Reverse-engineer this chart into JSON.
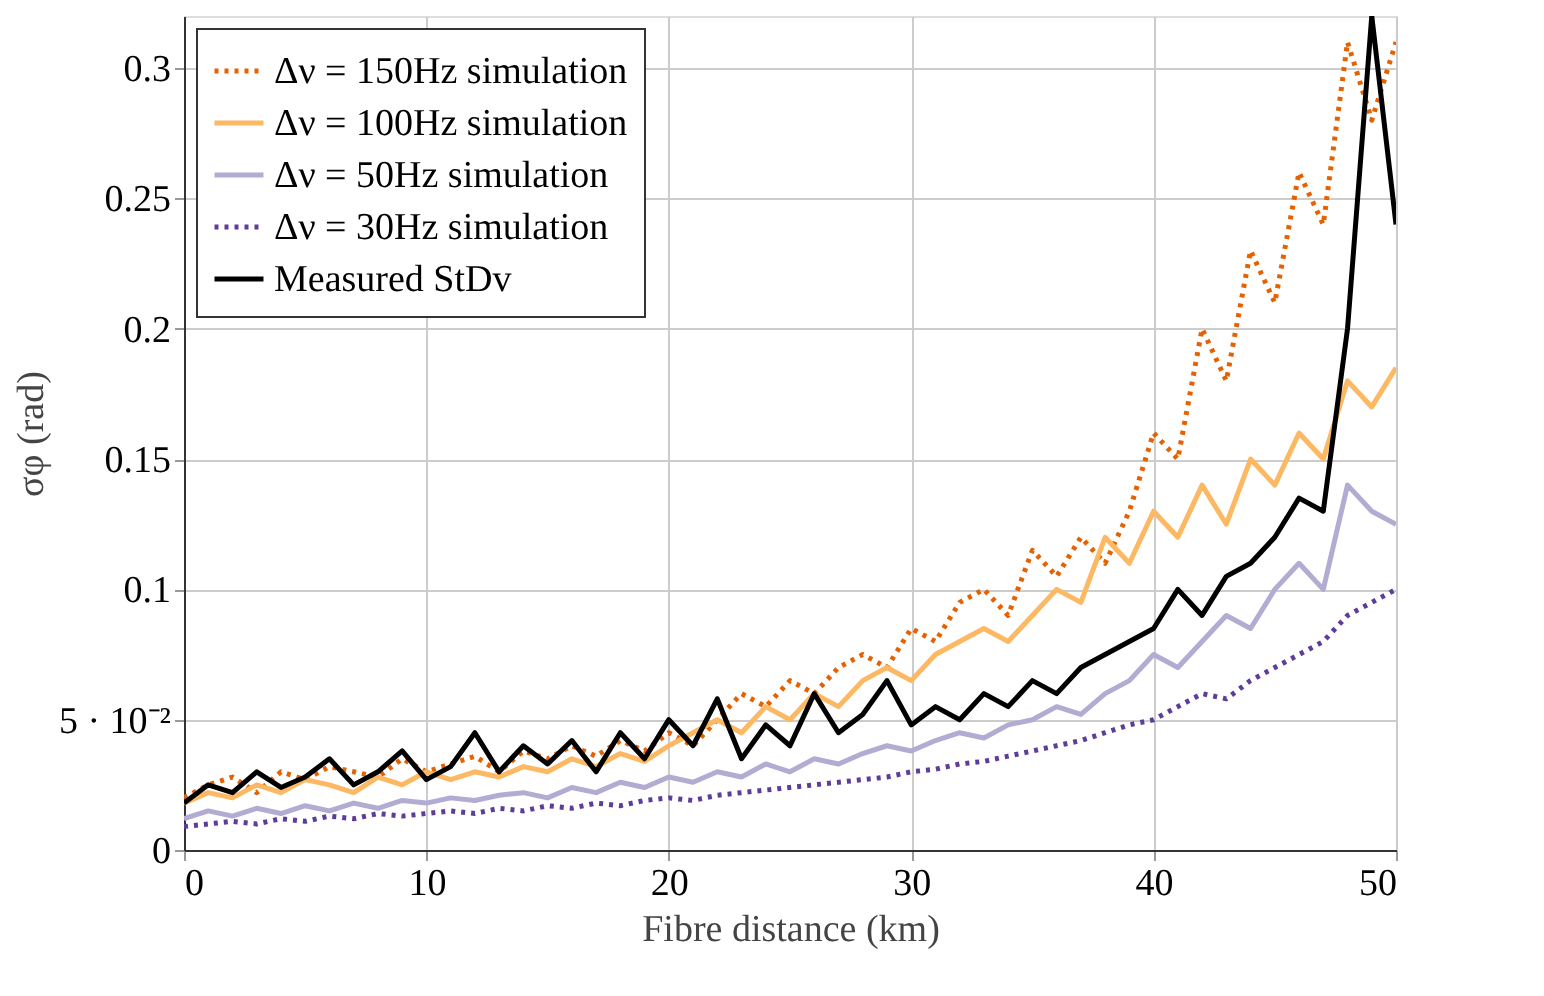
{
  "chart_data": {
    "type": "line",
    "xlabel": "Fibre distance (km)",
    "ylabel": "σφ (rad)",
    "x": [
      0,
      1,
      2,
      3,
      4,
      5,
      6,
      7,
      8,
      9,
      10,
      11,
      12,
      13,
      14,
      15,
      16,
      17,
      18,
      19,
      20,
      21,
      22,
      23,
      24,
      25,
      26,
      27,
      28,
      29,
      30,
      31,
      32,
      33,
      34,
      35,
      36,
      37,
      38,
      39,
      40,
      41,
      42,
      43,
      44,
      45,
      46,
      47,
      48,
      49,
      50
    ],
    "series": [
      {
        "name": "Δν = 150Hz simulation",
        "color": "#e66101",
        "line_style": "dotted",
        "values": [
          0.02,
          0.025,
          0.028,
          0.022,
          0.03,
          0.027,
          0.032,
          0.03,
          0.028,
          0.035,
          0.03,
          0.033,
          0.036,
          0.03,
          0.038,
          0.035,
          0.04,
          0.036,
          0.042,
          0.038,
          0.045,
          0.04,
          0.05,
          0.06,
          0.055,
          0.065,
          0.06,
          0.07,
          0.075,
          0.07,
          0.085,
          0.08,
          0.095,
          0.1,
          0.09,
          0.115,
          0.105,
          0.12,
          0.11,
          0.13,
          0.16,
          0.15,
          0.2,
          0.18,
          0.23,
          0.21,
          0.26,
          0.24,
          0.31,
          0.28,
          0.31
        ]
      },
      {
        "name": "Δν = 100Hz simulation",
        "color": "#fdb863",
        "line_style": "solid",
        "values": [
          0.018,
          0.022,
          0.02,
          0.025,
          0.022,
          0.027,
          0.025,
          0.022,
          0.028,
          0.025,
          0.03,
          0.027,
          0.03,
          0.028,
          0.032,
          0.03,
          0.035,
          0.032,
          0.037,
          0.034,
          0.04,
          0.045,
          0.05,
          0.045,
          0.055,
          0.05,
          0.06,
          0.055,
          0.065,
          0.07,
          0.065,
          0.075,
          0.08,
          0.085,
          0.08,
          0.09,
          0.1,
          0.095,
          0.12,
          0.11,
          0.13,
          0.12,
          0.14,
          0.125,
          0.15,
          0.14,
          0.16,
          0.15,
          0.18,
          0.17,
          0.185
        ]
      },
      {
        "name": "Δν = 50Hz simulation",
        "color": "#b2abd2",
        "line_style": "solid",
        "values": [
          0.012,
          0.015,
          0.013,
          0.016,
          0.014,
          0.017,
          0.015,
          0.018,
          0.016,
          0.019,
          0.018,
          0.02,
          0.019,
          0.021,
          0.022,
          0.02,
          0.024,
          0.022,
          0.026,
          0.024,
          0.028,
          0.026,
          0.03,
          0.028,
          0.033,
          0.03,
          0.035,
          0.033,
          0.037,
          0.04,
          0.038,
          0.042,
          0.045,
          0.043,
          0.048,
          0.05,
          0.055,
          0.052,
          0.06,
          0.065,
          0.075,
          0.07,
          0.08,
          0.09,
          0.085,
          0.1,
          0.11,
          0.1,
          0.14,
          0.13,
          0.125
        ]
      },
      {
        "name": "Δν = 30Hz simulation",
        "color": "#5e3c99",
        "line_style": "dotted",
        "values": [
          0.009,
          0.01,
          0.011,
          0.01,
          0.012,
          0.011,
          0.013,
          0.012,
          0.014,
          0.013,
          0.014,
          0.015,
          0.014,
          0.016,
          0.015,
          0.017,
          0.016,
          0.018,
          0.017,
          0.019,
          0.02,
          0.019,
          0.021,
          0.022,
          0.023,
          0.024,
          0.025,
          0.026,
          0.027,
          0.028,
          0.03,
          0.031,
          0.033,
          0.034,
          0.036,
          0.038,
          0.04,
          0.042,
          0.045,
          0.048,
          0.05,
          0.055,
          0.06,
          0.058,
          0.065,
          0.07,
          0.075,
          0.08,
          0.09,
          0.095,
          0.1
        ]
      },
      {
        "name": "Measured StDv",
        "color": "#000000",
        "line_style": "solid",
        "values": [
          0.018,
          0.025,
          0.022,
          0.03,
          0.024,
          0.028,
          0.035,
          0.025,
          0.03,
          0.038,
          0.027,
          0.032,
          0.045,
          0.03,
          0.04,
          0.033,
          0.042,
          0.03,
          0.045,
          0.035,
          0.05,
          0.04,
          0.058,
          0.035,
          0.048,
          0.04,
          0.06,
          0.045,
          0.052,
          0.065,
          0.048,
          0.055,
          0.05,
          0.06,
          0.055,
          0.065,
          0.06,
          0.07,
          0.075,
          0.08,
          0.085,
          0.1,
          0.09,
          0.105,
          0.11,
          0.12,
          0.135,
          0.13,
          0.2,
          0.32,
          0.24
        ]
      }
    ],
    "xlim": [
      0,
      50
    ],
    "xticks": [
      0,
      10,
      20,
      30,
      40,
      50
    ],
    "ylim": [
      0,
      0.32
    ],
    "yticks": [
      0,
      {
        "value": 0.05,
        "label": "5 · 10⁻²"
      },
      0.1,
      0.15,
      0.2,
      0.25,
      0.3
    ],
    "grid": true,
    "legend": "top left",
    "marker": "none"
  }
}
